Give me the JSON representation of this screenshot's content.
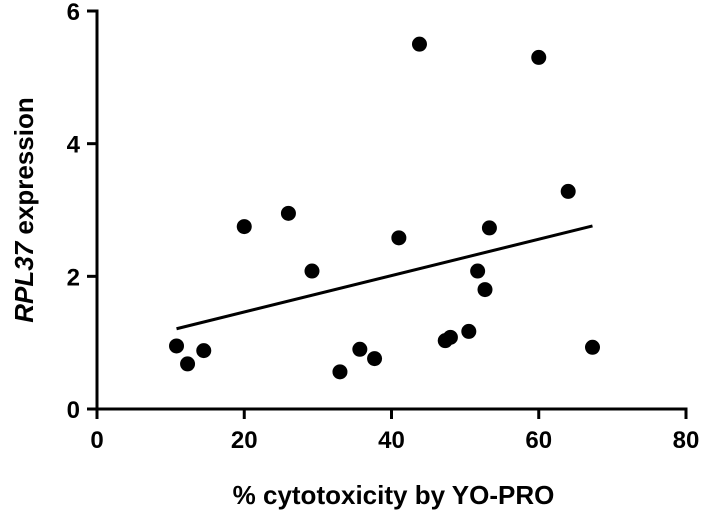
{
  "chart_data": {
    "type": "scatter",
    "title": "",
    "xlabel": "% cytotoxicity by YO-PRO",
    "ylabel_italic": "RPL37",
    "ylabel_rest": " expression",
    "xlim": [
      0,
      80
    ],
    "ylim": [
      0,
      6
    ],
    "x_ticks": [
      0,
      20,
      40,
      60,
      80
    ],
    "y_ticks": [
      0,
      2,
      4,
      6
    ],
    "x_tick_labels": [
      "0",
      "20",
      "40",
      "60",
      "80"
    ],
    "y_tick_labels": [
      "0",
      "2",
      "4",
      "6"
    ],
    "grid": false,
    "legend": "none",
    "points": [
      {
        "x": 10.8,
        "y": 0.95
      },
      {
        "x": 12.3,
        "y": 0.68
      },
      {
        "x": 14.5,
        "y": 0.88
      },
      {
        "x": 20.0,
        "y": 2.75
      },
      {
        "x": 26.0,
        "y": 2.95
      },
      {
        "x": 29.2,
        "y": 2.08
      },
      {
        "x": 33.0,
        "y": 0.56
      },
      {
        "x": 35.7,
        "y": 0.9
      },
      {
        "x": 37.7,
        "y": 0.76
      },
      {
        "x": 41.0,
        "y": 2.58
      },
      {
        "x": 43.8,
        "y": 5.5
      },
      {
        "x": 47.3,
        "y": 1.03
      },
      {
        "x": 48.0,
        "y": 1.08
      },
      {
        "x": 50.5,
        "y": 1.17
      },
      {
        "x": 51.7,
        "y": 2.08
      },
      {
        "x": 52.7,
        "y": 1.8
      },
      {
        "x": 53.3,
        "y": 2.73
      },
      {
        "x": 60.0,
        "y": 5.3
      },
      {
        "x": 64.0,
        "y": 3.28
      },
      {
        "x": 67.3,
        "y": 0.93
      }
    ],
    "trendline": {
      "x_start": 10.8,
      "y_start": 1.21,
      "x_end": 67.3,
      "y_end": 2.76
    },
    "colors": {
      "marker": "#000000",
      "line": "#000000",
      "axis": "#000000"
    }
  }
}
